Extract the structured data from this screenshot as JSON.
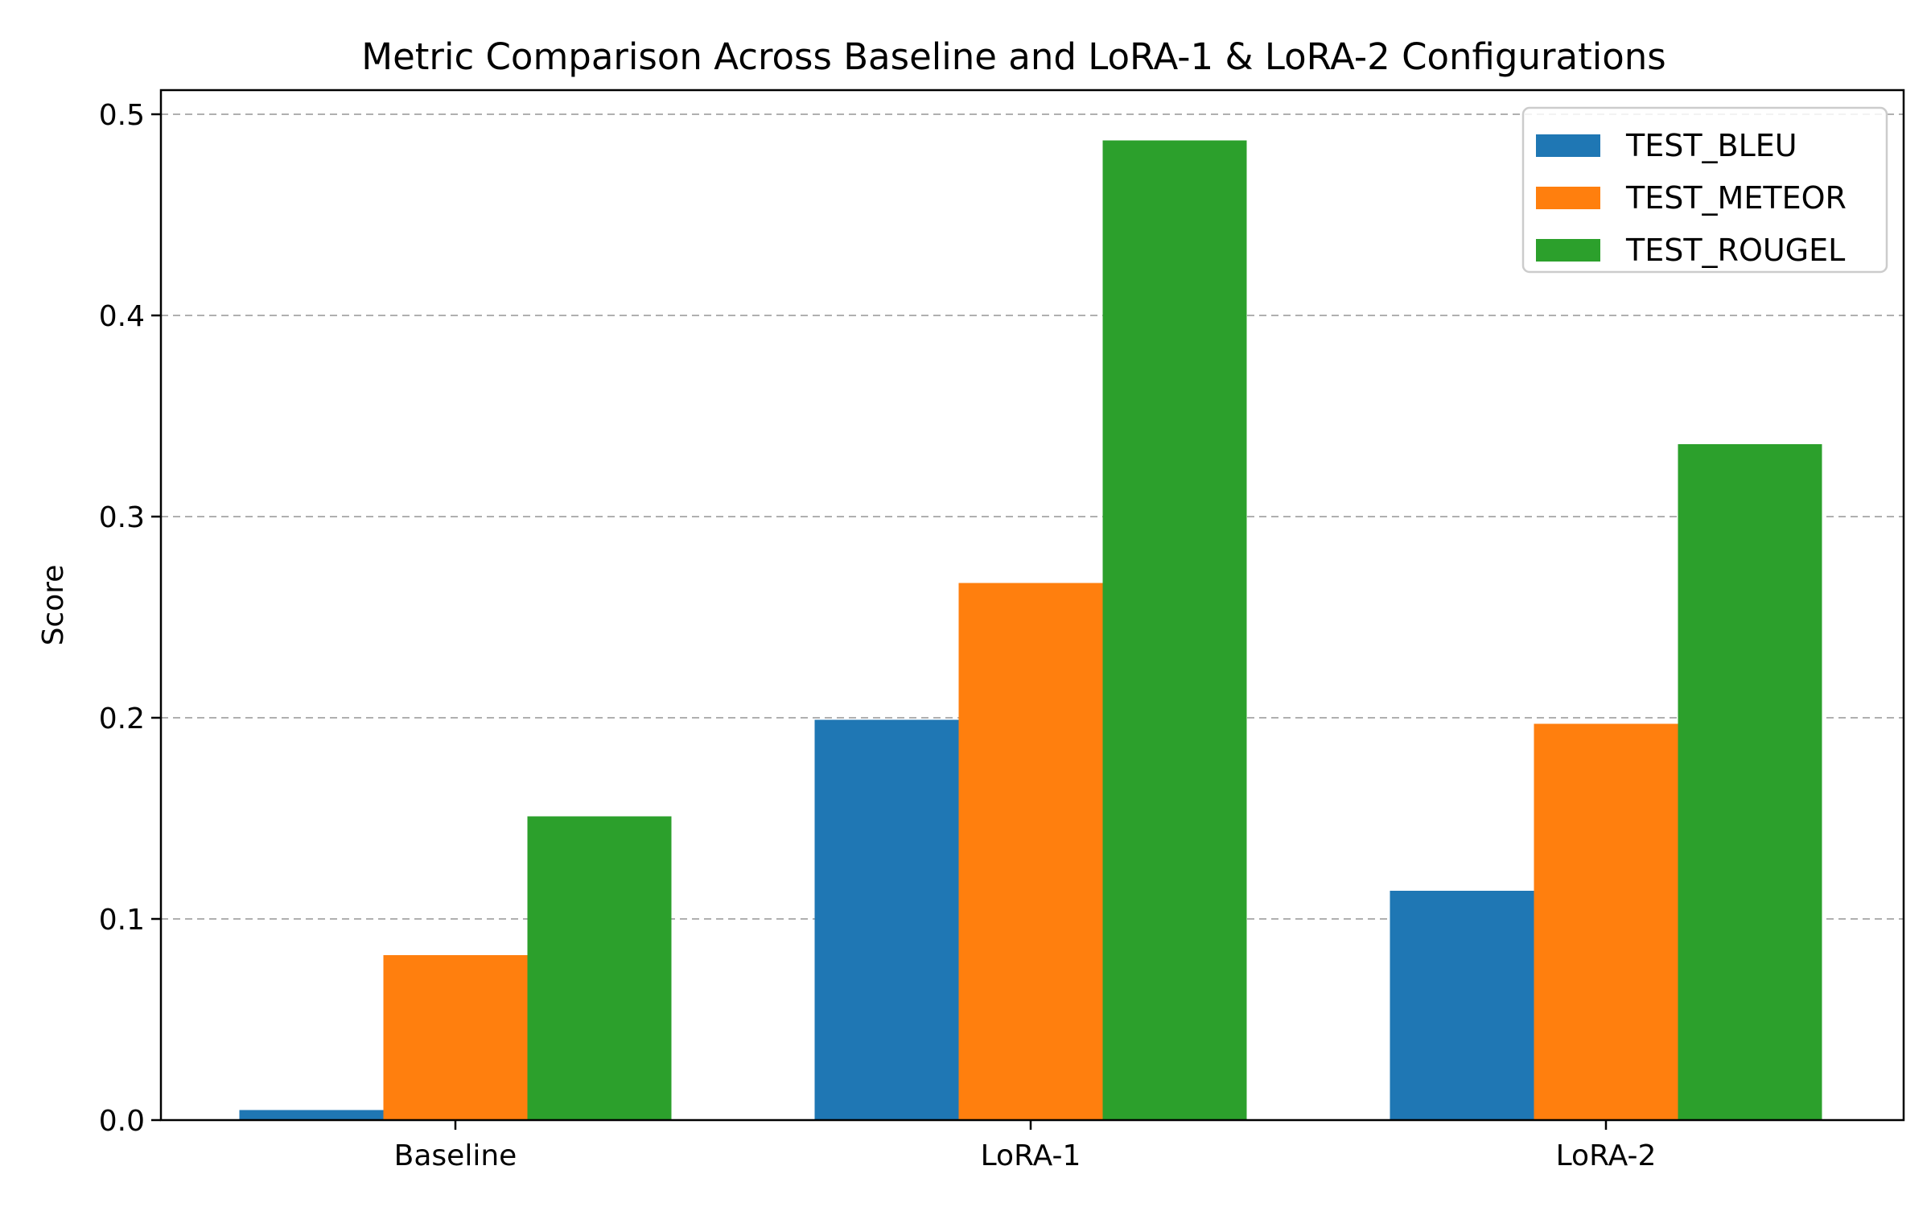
{
  "chart_data": {
    "type": "bar",
    "title": "Metric Comparison Across Baseline and LoRA-1 & LoRA-2 Configurations",
    "xlabel": "",
    "ylabel": "Score",
    "categories": [
      "Baseline",
      "LoRA-1",
      "LoRA-2"
    ],
    "series": [
      {
        "name": "TEST_BLEU",
        "color": "#1f77b4",
        "values": [
          0.005,
          0.199,
          0.114
        ]
      },
      {
        "name": "TEST_METEOR",
        "color": "#ff7f0e",
        "values": [
          0.082,
          0.267,
          0.197
        ]
      },
      {
        "name": "TEST_ROUGEL",
        "color": "#2ca02c",
        "values": [
          0.151,
          0.487,
          0.336
        ]
      }
    ],
    "ylim": [
      0,
      0.512
    ],
    "yticks": [
      "0.0",
      "0.1",
      "0.2",
      "0.3",
      "0.4",
      "0.5"
    ],
    "grid": "y-dashed",
    "legend_position": "top-right"
  }
}
